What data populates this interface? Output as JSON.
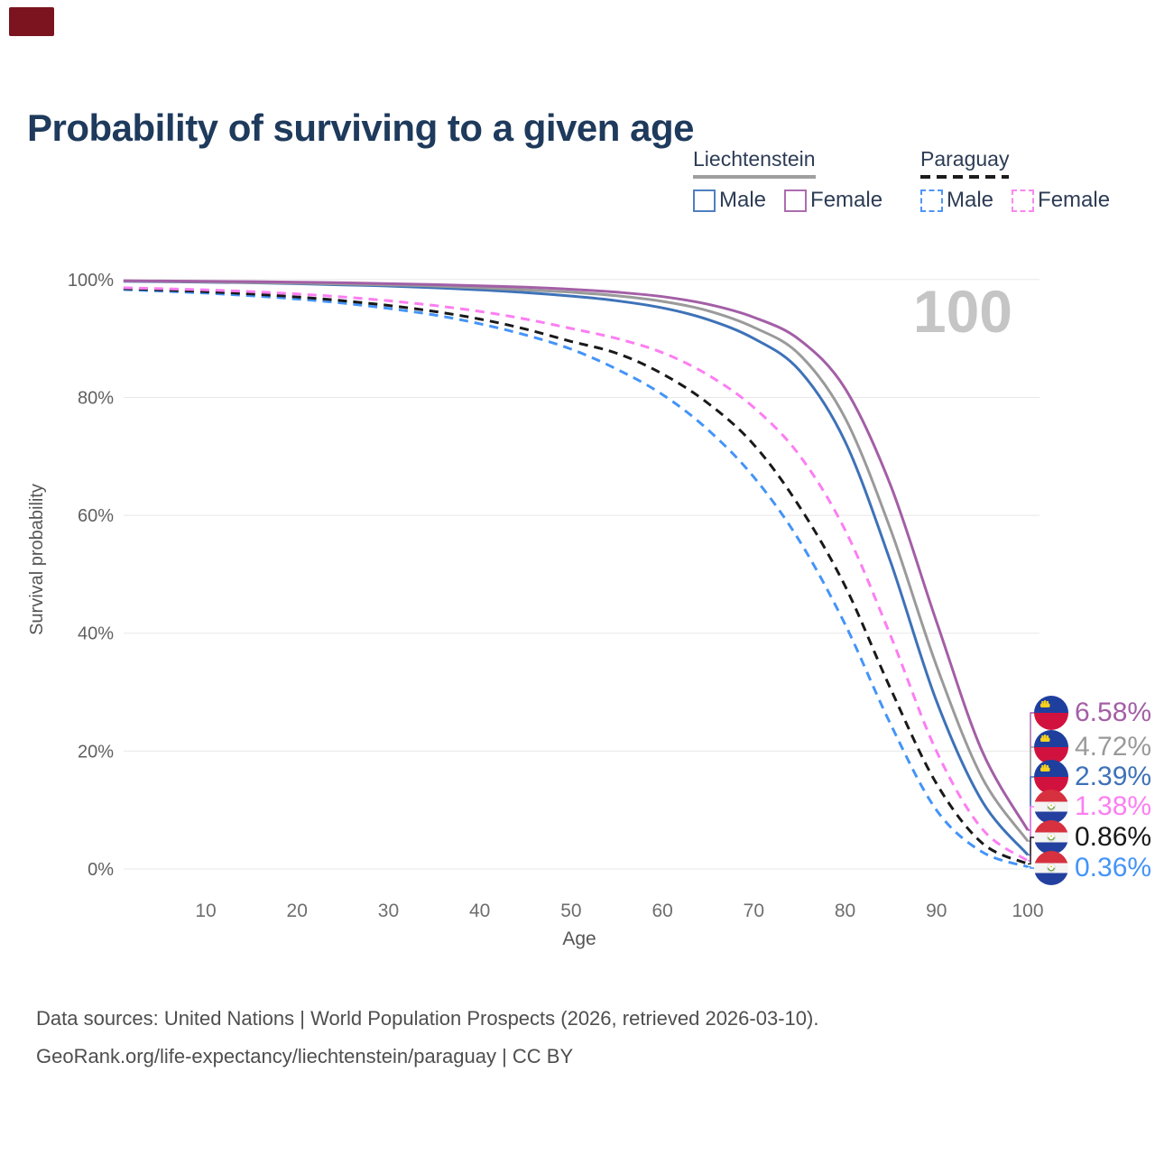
{
  "marker_color": "#7b141e",
  "title": {
    "text": "Probability of surviving to a given age",
    "color": "#1e3a5c"
  },
  "legend": {
    "groups": [
      {
        "country": "Liechtenstein",
        "line_style": "solid",
        "underline_color": "#9e9e9e",
        "items": [
          {
            "label": "Male",
            "color": "#4f7fc0",
            "dashed": false
          },
          {
            "label": "Female",
            "color": "#ad6cae",
            "dashed": false
          }
        ]
      },
      {
        "country": "Paraguay",
        "line_style": "dashed",
        "underline_color": "#1c1c1c",
        "items": [
          {
            "label": "Male",
            "color": "#4f95f5",
            "dashed": true
          },
          {
            "label": "Female",
            "color": "#f988ef",
            "dashed": true
          }
        ]
      }
    ]
  },
  "chart_data": {
    "type": "line",
    "title": "Probability of surviving to a given age",
    "xlabel": "Age",
    "ylabel": "Survival probability",
    "xlim": [
      0,
      100
    ],
    "ylim": [
      0,
      100
    ],
    "grid": "horizontal",
    "legend_position": "top-right",
    "hovered_age": "100",
    "x_ticks": [
      {
        "value": 10,
        "label": "10"
      },
      {
        "value": 20,
        "label": "20"
      },
      {
        "value": 30,
        "label": "30"
      },
      {
        "value": 40,
        "label": "40"
      },
      {
        "value": 50,
        "label": "50"
      },
      {
        "value": 60,
        "label": "60"
      },
      {
        "value": 70,
        "label": "70"
      },
      {
        "value": 80,
        "label": "80"
      },
      {
        "value": 90,
        "label": "90"
      },
      {
        "value": 100,
        "label": "100"
      }
    ],
    "y_ticks": [
      {
        "value": 0,
        "label": "0%"
      },
      {
        "value": 20,
        "label": "20%"
      },
      {
        "value": 40,
        "label": "40%"
      },
      {
        "value": 60,
        "label": "60%"
      },
      {
        "value": 80,
        "label": "80%"
      },
      {
        "value": 100,
        "label": "100%"
      }
    ],
    "ages": [
      1,
      5,
      10,
      15,
      20,
      25,
      30,
      35,
      40,
      45,
      50,
      55,
      60,
      65,
      70,
      75,
      80,
      85,
      90,
      95,
      100
    ],
    "series": [
      {
        "id": "liechtenstein-female",
        "name": "Liechtenstein Female",
        "country": "Liechtenstein",
        "sex": "Female",
        "color": "#a35fa6",
        "dashed": false,
        "end_label": "6.58%",
        "values": [
          99.8,
          99.75,
          99.7,
          99.65,
          99.55,
          99.45,
          99.3,
          99.15,
          98.95,
          98.7,
          98.35,
          97.85,
          97.1,
          95.8,
          93.6,
          89.8,
          81.5,
          65.0,
          42.0,
          20.0,
          6.58
        ]
      },
      {
        "id": "liechtenstein-all",
        "name": "Liechtenstein (both sexes)",
        "country": "Liechtenstein",
        "sex": "All",
        "color": "#9a9a9a",
        "dashed": false,
        "end_label": "4.72%",
        "values": [
          99.75,
          99.7,
          99.6,
          99.5,
          99.4,
          99.25,
          99.1,
          98.9,
          98.6,
          98.25,
          97.85,
          97.25,
          96.3,
          94.7,
          91.9,
          87.3,
          76.5,
          57.5,
          34.5,
          15.5,
          4.72
        ]
      },
      {
        "id": "liechtenstein-male",
        "name": "Liechtenstein Male",
        "country": "Liechtenstein",
        "sex": "Male",
        "color": "#3e72b8",
        "dashed": false,
        "end_label": "2.39%",
        "values": [
          99.7,
          99.65,
          99.55,
          99.45,
          99.3,
          99.1,
          98.9,
          98.6,
          98.25,
          97.8,
          97.2,
          96.4,
          95.2,
          93.2,
          90.0,
          84.6,
          72.5,
          52.0,
          28.5,
          11.5,
          2.39
        ]
      },
      {
        "id": "paraguay-female",
        "name": "Paraguay Female",
        "country": "Paraguay",
        "sex": "Female",
        "color": "#fc7ef2",
        "dashed": true,
        "end_label": "1.38%",
        "values": [
          98.6,
          98.45,
          98.25,
          97.95,
          97.55,
          97.05,
          96.4,
          95.6,
          94.6,
          93.3,
          91.7,
          90.0,
          87.6,
          83.8,
          78.3,
          70.2,
          57.5,
          39.5,
          20.0,
          6.8,
          1.38
        ]
      },
      {
        "id": "paraguay-all",
        "name": "Paraguay (both sexes)",
        "country": "Paraguay",
        "sex": "All",
        "color": "#191919",
        "dashed": true,
        "end_label": "0.86%",
        "values": [
          98.45,
          98.25,
          97.95,
          97.55,
          97.05,
          96.4,
          95.6,
          94.6,
          93.3,
          91.6,
          89.5,
          87.5,
          84.0,
          79.0,
          72.0,
          61.5,
          48.0,
          30.5,
          14.5,
          4.4,
          0.86
        ]
      },
      {
        "id": "paraguay-male",
        "name": "Paraguay Male",
        "country": "Paraguay",
        "sex": "Male",
        "color": "#4494f8",
        "dashed": true,
        "end_label": "0.36%",
        "values": [
          98.3,
          98.05,
          97.7,
          97.25,
          96.7,
          96.0,
          95.1,
          94.0,
          92.5,
          90.6,
          88.2,
          84.8,
          80.5,
          74.5,
          66.5,
          55.7,
          41.5,
          24.5,
          10.0,
          2.9,
          0.36
        ]
      }
    ]
  },
  "footer": {
    "line1": "Data sources: United Nations | World Population Prospects (2026, retrieved 2026-03-10).",
    "line2": "GeoRank.org/life-expectancy/liechtenstein/paraguay | CC BY"
  }
}
